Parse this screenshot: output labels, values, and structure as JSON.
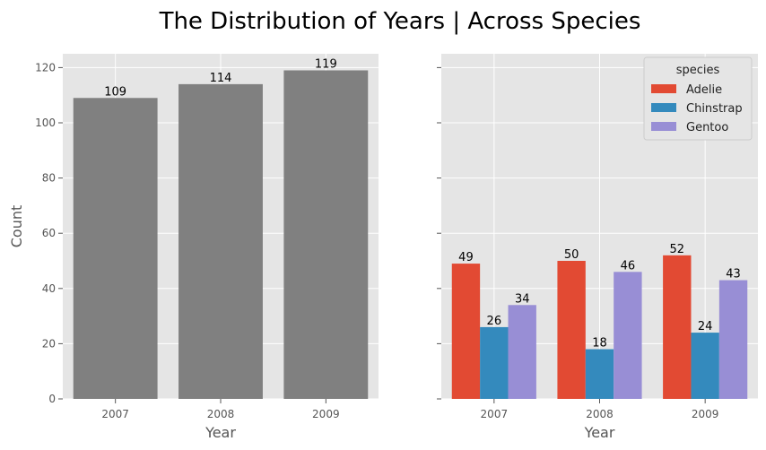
{
  "figure": {
    "title": "The Distribution of Years | Across Species"
  },
  "chart_data": [
    {
      "type": "bar",
      "categories": [
        "2007",
        "2008",
        "2009"
      ],
      "values": [
        109,
        114,
        119
      ],
      "data_labels": [
        "109",
        "114",
        "119"
      ],
      "color": "#808080",
      "xlabel": "Year",
      "ylabel": "Count",
      "ylim": [
        0,
        125
      ],
      "yticks": [
        "0",
        "20",
        "40",
        "60",
        "80",
        "100",
        "120"
      ],
      "grid": true,
      "background": "#e5e5e5"
    },
    {
      "type": "bar",
      "categories": [
        "2007",
        "2008",
        "2009"
      ],
      "series": [
        {
          "name": "Adelie",
          "values": [
            49,
            50,
            52
          ],
          "color": "#e24a33"
        },
        {
          "name": "Chinstrap",
          "values": [
            26,
            18,
            24
          ],
          "color": "#348abd"
        },
        {
          "name": "Gentoo",
          "values": [
            34,
            46,
            43
          ],
          "color": "#988ed5"
        }
      ],
      "xlabel": "Year",
      "ylabel": "",
      "ylim": [
        0,
        125
      ],
      "shared_y": true,
      "grid": true,
      "background": "#e5e5e5",
      "legend": {
        "title": "species",
        "placement": "top-right"
      }
    }
  ]
}
